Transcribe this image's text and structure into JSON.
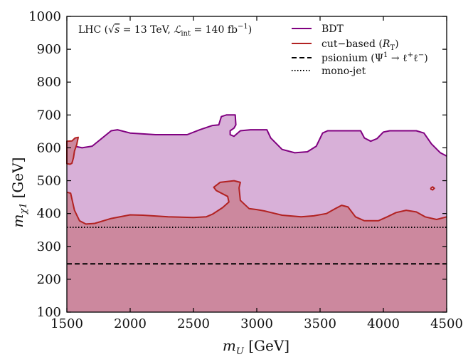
{
  "chart_data": {
    "type": "area",
    "title": "",
    "annotation": "LHC (√s = 13 TeV, ℒ_int = 140 fb⁻¹)",
    "annotation_parts": [
      "LHC (",
      "√",
      "s",
      " = 13 TeV, ",
      "ℒ",
      "int",
      " = 140 fb",
      "−1",
      ")"
    ],
    "xlabel": "m_U [GeV]",
    "xlabel_parts": {
      "sym": "m",
      "sub": "U",
      "unit": " [GeV]"
    },
    "ylabel": "m_χ1 [GeV]",
    "ylabel_parts": {
      "sym": "m",
      "sub": "χ1",
      "unit": "[GeV]"
    },
    "xlim": [
      1500,
      4500
    ],
    "ylim": [
      100,
      1000
    ],
    "x_ticks": [
      1500,
      2000,
      2500,
      3000,
      3500,
      4000,
      4500
    ],
    "y_ticks": [
      100,
      200,
      300,
      400,
      500,
      600,
      700,
      800,
      900,
      1000
    ],
    "legend_position": "top-right",
    "legend": [
      {
        "label": "BDT",
        "style": "solid",
        "color": "#800080"
      },
      {
        "label": "cut−based (R_T)",
        "parts": [
          "cut−based (",
          "R",
          "T",
          ")"
        ],
        "style": "solid",
        "color": "#b22222"
      },
      {
        "label": "psionium (Ψ¹ → ℓ⁺ℓ⁻)",
        "parts": [
          "psionium (Ψ",
          "1",
          " → ℓ",
          "+",
          "ℓ",
          "−",
          ")"
        ],
        "style": "dashed",
        "color": "#000000"
      },
      {
        "label": "mono-jet",
        "style": "dotted",
        "color": "#000000"
      }
    ],
    "series": [
      {
        "name": "BDT",
        "kind": "filled_region",
        "line_color": "#800080",
        "fill_color": "#d8b0d8",
        "upper": [
          [
            1500,
            610
          ],
          [
            1560,
            605
          ],
          [
            1620,
            600
          ],
          [
            1700,
            605
          ],
          [
            1780,
            630
          ],
          [
            1850,
            652
          ],
          [
            1900,
            655
          ],
          [
            2000,
            645
          ],
          [
            2200,
            640
          ],
          [
            2450,
            640
          ],
          [
            2550,
            655
          ],
          [
            2650,
            668
          ],
          [
            2700,
            670
          ],
          [
            2720,
            695
          ],
          [
            2760,
            700
          ],
          [
            2830,
            700
          ],
          [
            2835,
            670
          ],
          [
            2820,
            660
          ],
          [
            2790,
            652
          ],
          [
            2790,
            640
          ],
          [
            2820,
            635
          ],
          [
            2870,
            652
          ],
          [
            2950,
            655
          ],
          [
            3080,
            655
          ],
          [
            3110,
            630
          ],
          [
            3200,
            595
          ],
          [
            3300,
            585
          ],
          [
            3400,
            588
          ],
          [
            3470,
            605
          ],
          [
            3520,
            645
          ],
          [
            3560,
            652
          ],
          [
            3820,
            652
          ],
          [
            3850,
            630
          ],
          [
            3900,
            620
          ],
          [
            3950,
            628
          ],
          [
            4000,
            648
          ],
          [
            4050,
            652
          ],
          [
            4260,
            652
          ],
          [
            4320,
            645
          ],
          [
            4380,
            612
          ],
          [
            4450,
            585
          ],
          [
            4500,
            575
          ]
        ]
      },
      {
        "name": "cut−based (R_T)",
        "kind": "filled_region",
        "line_color": "#b22222",
        "fill_color": "#cc889e",
        "upper": [
          [
            1500,
            465
          ],
          [
            1530,
            462
          ],
          [
            1560,
            410
          ],
          [
            1600,
            378
          ],
          [
            1650,
            368
          ],
          [
            1720,
            370
          ],
          [
            1850,
            385
          ],
          [
            2000,
            396
          ],
          [
            2100,
            395
          ],
          [
            2300,
            390
          ],
          [
            2500,
            388
          ],
          [
            2600,
            390
          ],
          [
            2650,
            398
          ],
          [
            2730,
            418
          ],
          [
            2780,
            435
          ],
          [
            2770,
            452
          ],
          [
            2680,
            470
          ],
          [
            2660,
            480
          ],
          [
            2710,
            495
          ],
          [
            2820,
            500
          ],
          [
            2870,
            495
          ],
          [
            2860,
            478
          ],
          [
            2870,
            440
          ],
          [
            2940,
            415
          ],
          [
            3000,
            412
          ],
          [
            3060,
            408
          ],
          [
            3200,
            395
          ],
          [
            3350,
            390
          ],
          [
            3450,
            393
          ],
          [
            3550,
            400
          ],
          [
            3620,
            415
          ],
          [
            3670,
            425
          ],
          [
            3720,
            420
          ],
          [
            3780,
            390
          ],
          [
            3850,
            378
          ],
          [
            3960,
            378
          ],
          [
            4030,
            390
          ],
          [
            4100,
            403
          ],
          [
            4180,
            410
          ],
          [
            4260,
            405
          ],
          [
            4330,
            390
          ],
          [
            4420,
            382
          ],
          [
            4500,
            390
          ]
        ],
        "islands": [
          [
            [
              1500,
              620
            ],
            [
              1540,
              621
            ],
            [
              1565,
              630
            ],
            [
              1590,
              632
            ],
            [
              1578,
              610
            ],
            [
              1560,
              590
            ],
            [
              1552,
              570
            ],
            [
              1540,
              553
            ],
            [
              1525,
              550
            ],
            [
              1500,
              552
            ]
          ]
        ],
        "contours": [
          [
            [
              4374,
              478
            ],
            [
              4390,
              481
            ],
            [
              4402,
              477
            ],
            [
              4390,
              472
            ],
            [
              4376,
              474
            ],
            [
              4374,
              478
            ]
          ]
        ]
      },
      {
        "name": "psionium (Ψ¹ → ℓ⁺ℓ⁻)",
        "kind": "horizontal_line",
        "y": 247,
        "style": "dashed",
        "color": "#000000"
      },
      {
        "name": "mono-jet",
        "kind": "horizontal_line",
        "y": 358,
        "style": "dotted",
        "color": "#000000"
      }
    ],
    "grid": false
  }
}
